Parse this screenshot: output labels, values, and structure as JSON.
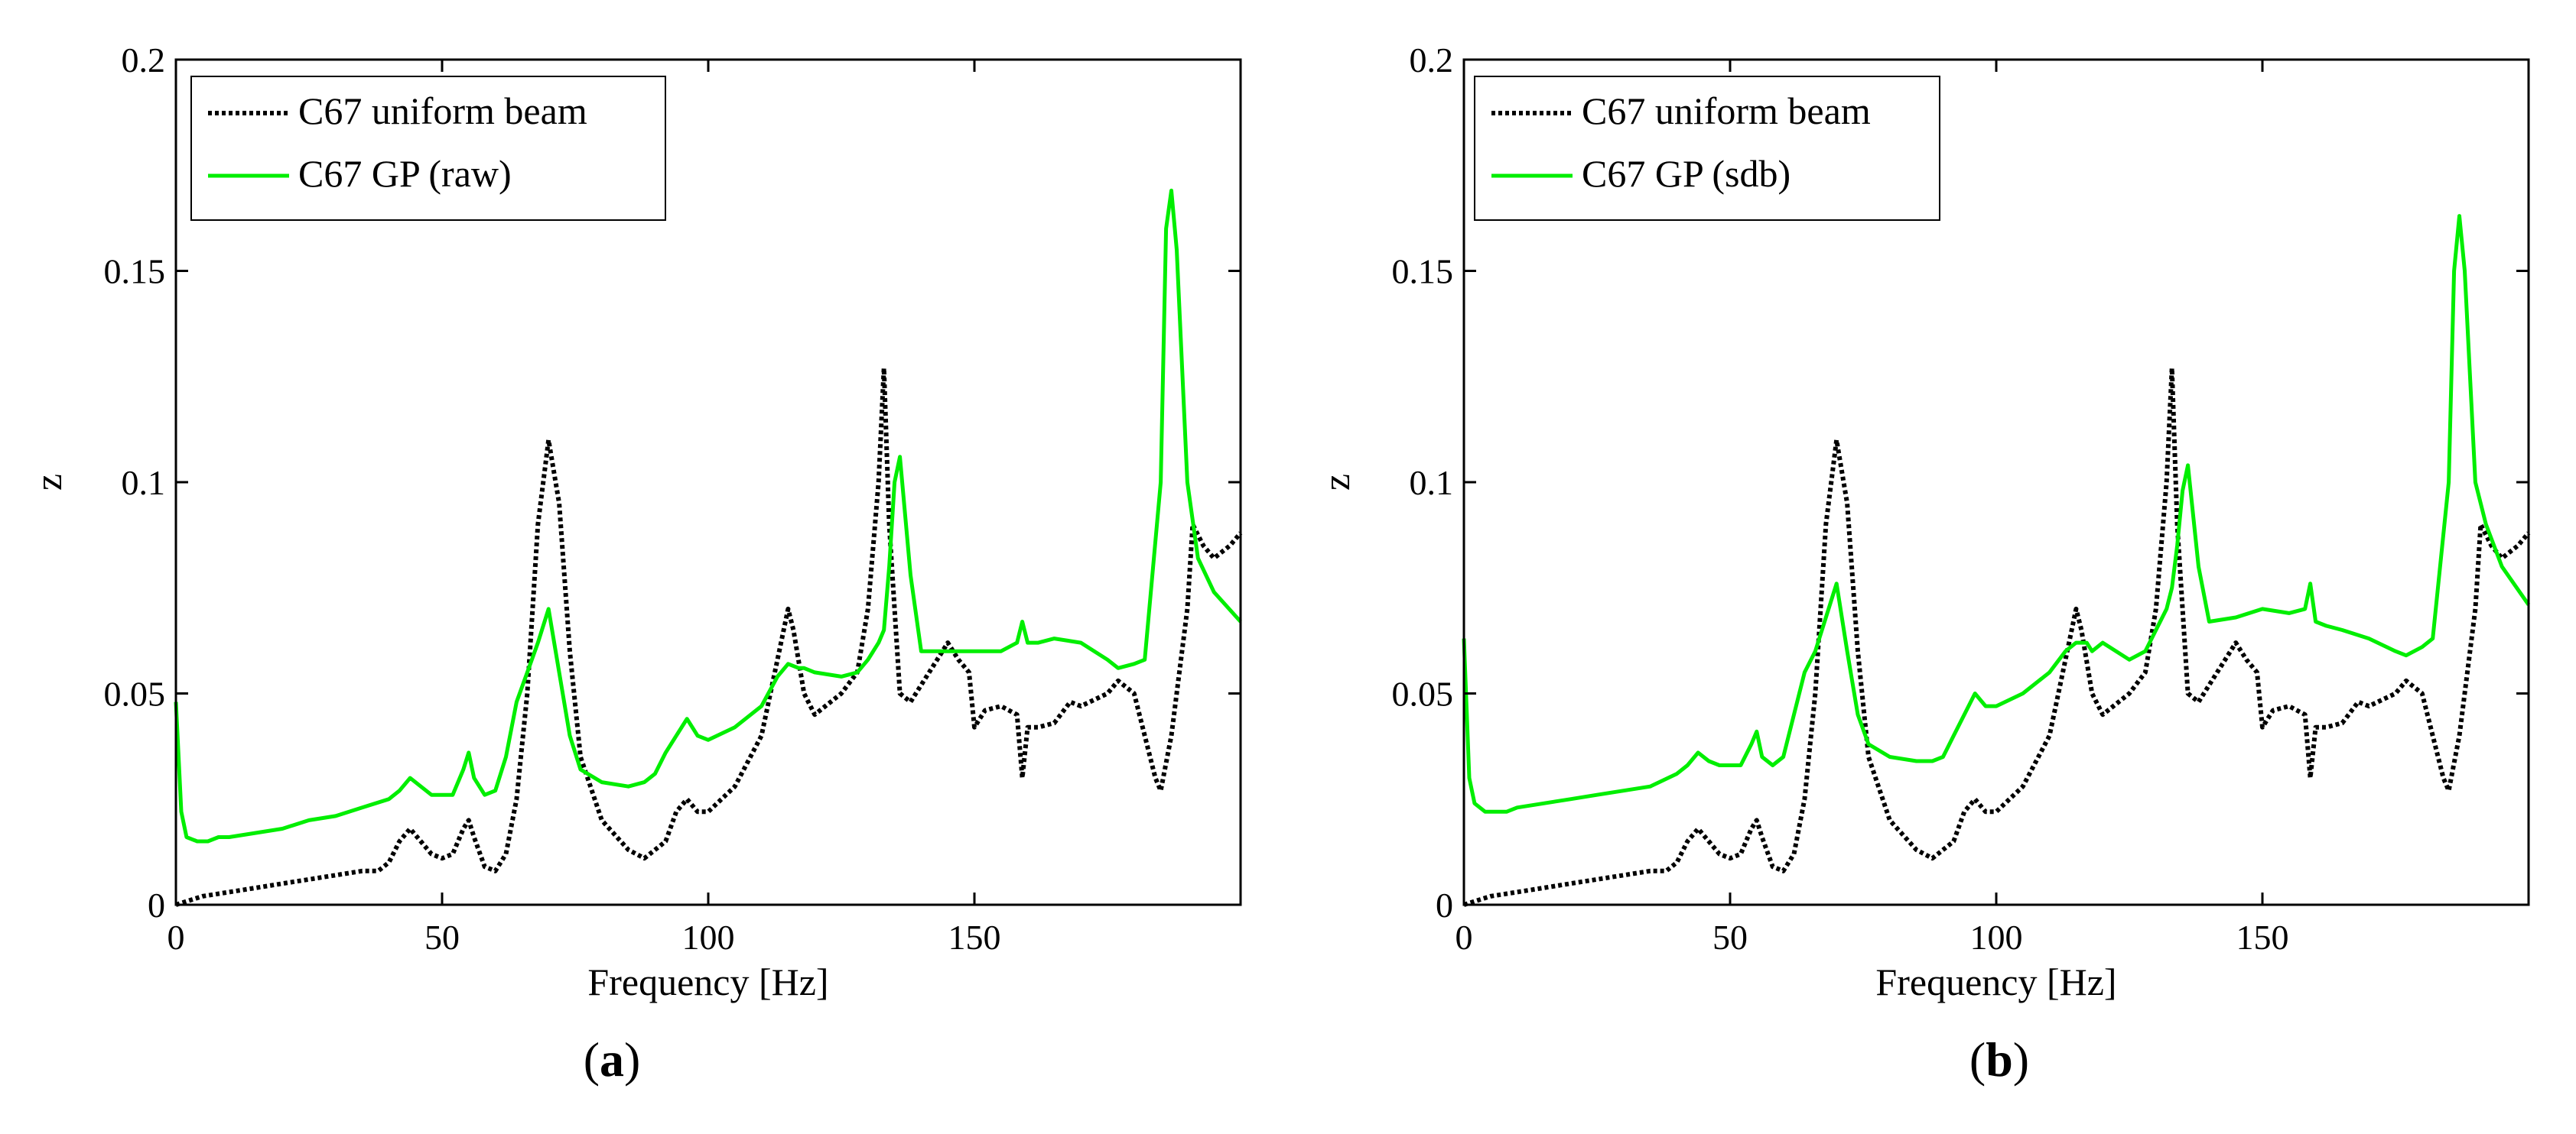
{
  "colors": {
    "uniform": "#000000",
    "gp": "#00ee00",
    "frame": "#000000",
    "background": "#ffffff"
  },
  "chart_data": [
    {
      "type": "line",
      "caption_letter": "a",
      "caption_open": "(",
      "caption_close": ")",
      "xlabel": "Frequency [Hz]",
      "ylabel": "z",
      "xlim": [
        0,
        200
      ],
      "ylim": [
        0,
        0.2
      ],
      "xticks": [
        0,
        50,
        100,
        150
      ],
      "xtick_labels": [
        "0",
        "50",
        "100",
        "150"
      ],
      "yticks": [
        0,
        0.05,
        0.1,
        0.15,
        0.2
      ],
      "ytick_labels": [
        "0",
        "0.05",
        "0.1",
        "0.15",
        "0.2"
      ],
      "legend_position": "top-left",
      "series": [
        {
          "name": "C67 uniform beam",
          "style": "dotted",
          "color": "#000000",
          "x": [
            0,
            5,
            10,
            15,
            20,
            25,
            30,
            35,
            38,
            40,
            42,
            44,
            46,
            48,
            50,
            52,
            54,
            55,
            56,
            58,
            60,
            62,
            64,
            66,
            68,
            70,
            72,
            74,
            76,
            80,
            85,
            88,
            92,
            94,
            96,
            98,
            100,
            105,
            110,
            113,
            115,
            116,
            118,
            120,
            125,
            128,
            130,
            132,
            133,
            134,
            136,
            138,
            140,
            143,
            145,
            147,
            149,
            150,
            152,
            155,
            158,
            159,
            160,
            162,
            165,
            168,
            170,
            175,
            177,
            180,
            182,
            184,
            185,
            187,
            190,
            191,
            193,
            195,
            198,
            200
          ],
          "values": [
            0,
            0.002,
            0.003,
            0.004,
            0.005,
            0.006,
            0.007,
            0.008,
            0.008,
            0.01,
            0.015,
            0.018,
            0.015,
            0.012,
            0.011,
            0.012,
            0.018,
            0.02,
            0.016,
            0.009,
            0.008,
            0.012,
            0.025,
            0.05,
            0.09,
            0.11,
            0.095,
            0.06,
            0.035,
            0.02,
            0.013,
            0.011,
            0.015,
            0.022,
            0.025,
            0.022,
            0.022,
            0.028,
            0.04,
            0.058,
            0.07,
            0.065,
            0.05,
            0.045,
            0.05,
            0.055,
            0.07,
            0.1,
            0.127,
            0.09,
            0.05,
            0.048,
            0.052,
            0.058,
            0.062,
            0.058,
            0.055,
            0.042,
            0.046,
            0.047,
            0.045,
            0.03,
            0.042,
            0.042,
            0.043,
            0.048,
            0.047,
            0.05,
            0.053,
            0.05,
            0.04,
            0.03,
            0.027,
            0.04,
            0.07,
            0.09,
            0.085,
            0.082,
            0.085,
            0.088
          ]
        },
        {
          "name": "C67 GP (raw)",
          "style": "solid",
          "color": "#00ee00",
          "x": [
            0,
            1,
            2,
            4,
            6,
            8,
            10,
            15,
            20,
            25,
            30,
            35,
            40,
            42,
            44,
            46,
            48,
            50,
            52,
            54,
            55,
            56,
            58,
            60,
            62,
            64,
            66,
            68,
            70,
            72,
            74,
            76,
            80,
            85,
            88,
            90,
            92,
            94,
            96,
            98,
            100,
            105,
            110,
            113,
            115,
            117,
            118,
            120,
            125,
            128,
            130,
            132,
            133,
            134,
            135,
            136,
            138,
            140,
            145,
            150,
            155,
            158,
            159,
            160,
            162,
            165,
            170,
            175,
            177,
            180,
            182,
            185,
            186,
            187,
            188,
            190,
            192,
            195,
            200
          ],
          "values": [
            0.048,
            0.022,
            0.016,
            0.015,
            0.015,
            0.016,
            0.016,
            0.017,
            0.018,
            0.02,
            0.021,
            0.023,
            0.025,
            0.027,
            0.03,
            0.028,
            0.026,
            0.026,
            0.026,
            0.032,
            0.036,
            0.03,
            0.026,
            0.027,
            0.035,
            0.048,
            0.055,
            0.062,
            0.07,
            0.055,
            0.04,
            0.032,
            0.029,
            0.028,
            0.029,
            0.031,
            0.036,
            0.04,
            0.044,
            0.04,
            0.039,
            0.042,
            0.047,
            0.054,
            0.057,
            0.056,
            0.056,
            0.055,
            0.054,
            0.055,
            0.058,
            0.062,
            0.065,
            0.08,
            0.1,
            0.106,
            0.078,
            0.06,
            0.06,
            0.06,
            0.06,
            0.062,
            0.067,
            0.062,
            0.062,
            0.063,
            0.062,
            0.058,
            0.056,
            0.057,
            0.058,
            0.1,
            0.16,
            0.169,
            0.155,
            0.1,
            0.082,
            0.074,
            0.067
          ]
        }
      ]
    },
    {
      "type": "line",
      "caption_letter": "b",
      "caption_open": "(",
      "caption_close": ")",
      "xlabel": "Frequency [Hz]",
      "ylabel": "z",
      "xlim": [
        0,
        200
      ],
      "ylim": [
        0,
        0.2
      ],
      "xticks": [
        0,
        50,
        100,
        150
      ],
      "xtick_labels": [
        "0",
        "50",
        "100",
        "150"
      ],
      "yticks": [
        0,
        0.05,
        0.1,
        0.15,
        0.2
      ],
      "ytick_labels": [
        "0",
        "0.05",
        "0.1",
        "0.15",
        "0.2"
      ],
      "legend_position": "top-left",
      "series": [
        {
          "name": "C67 uniform beam",
          "style": "dotted",
          "color": "#000000",
          "x": [
            0,
            5,
            10,
            15,
            20,
            25,
            30,
            35,
            38,
            40,
            42,
            44,
            46,
            48,
            50,
            52,
            54,
            55,
            56,
            58,
            60,
            62,
            64,
            66,
            68,
            70,
            72,
            74,
            76,
            80,
            85,
            88,
            92,
            94,
            96,
            98,
            100,
            105,
            110,
            113,
            115,
            116,
            118,
            120,
            125,
            128,
            130,
            132,
            133,
            134,
            136,
            138,
            140,
            143,
            145,
            147,
            149,
            150,
            152,
            155,
            158,
            159,
            160,
            162,
            165,
            168,
            170,
            175,
            177,
            180,
            182,
            184,
            185,
            187,
            190,
            191,
            193,
            195,
            198,
            200
          ],
          "values": [
            0,
            0.002,
            0.003,
            0.004,
            0.005,
            0.006,
            0.007,
            0.008,
            0.008,
            0.01,
            0.015,
            0.018,
            0.015,
            0.012,
            0.011,
            0.012,
            0.018,
            0.02,
            0.016,
            0.009,
            0.008,
            0.012,
            0.025,
            0.05,
            0.09,
            0.11,
            0.095,
            0.06,
            0.035,
            0.02,
            0.013,
            0.011,
            0.015,
            0.022,
            0.025,
            0.022,
            0.022,
            0.028,
            0.04,
            0.058,
            0.07,
            0.065,
            0.05,
            0.045,
            0.05,
            0.055,
            0.07,
            0.1,
            0.127,
            0.09,
            0.05,
            0.048,
            0.052,
            0.058,
            0.062,
            0.058,
            0.055,
            0.042,
            0.046,
            0.047,
            0.045,
            0.03,
            0.042,
            0.042,
            0.043,
            0.048,
            0.047,
            0.05,
            0.053,
            0.05,
            0.04,
            0.03,
            0.027,
            0.04,
            0.07,
            0.09,
            0.085,
            0.082,
            0.085,
            0.088
          ]
        },
        {
          "name": "C67 GP (sdb)",
          "style": "solid",
          "color": "#00ee00",
          "x": [
            0,
            1,
            2,
            4,
            6,
            8,
            10,
            15,
            20,
            25,
            30,
            35,
            40,
            42,
            44,
            46,
            48,
            50,
            52,
            54,
            55,
            56,
            58,
            60,
            62,
            64,
            66,
            68,
            70,
            72,
            74,
            76,
            80,
            85,
            88,
            90,
            92,
            94,
            96,
            98,
            100,
            105,
            110,
            113,
            115,
            117,
            118,
            120,
            125,
            128,
            130,
            132,
            133,
            134,
            135,
            136,
            138,
            140,
            145,
            150,
            155,
            158,
            159,
            160,
            162,
            165,
            170,
            175,
            177,
            180,
            182,
            185,
            186,
            187,
            188,
            190,
            192,
            195,
            200
          ],
          "values": [
            0.063,
            0.03,
            0.024,
            0.022,
            0.022,
            0.022,
            0.023,
            0.024,
            0.025,
            0.026,
            0.027,
            0.028,
            0.031,
            0.033,
            0.036,
            0.034,
            0.033,
            0.033,
            0.033,
            0.038,
            0.041,
            0.035,
            0.033,
            0.035,
            0.045,
            0.055,
            0.06,
            0.068,
            0.076,
            0.06,
            0.045,
            0.038,
            0.035,
            0.034,
            0.034,
            0.035,
            0.04,
            0.045,
            0.05,
            0.047,
            0.047,
            0.05,
            0.055,
            0.06,
            0.062,
            0.062,
            0.06,
            0.062,
            0.058,
            0.06,
            0.065,
            0.07,
            0.075,
            0.085,
            0.098,
            0.104,
            0.08,
            0.067,
            0.068,
            0.07,
            0.069,
            0.07,
            0.076,
            0.067,
            0.066,
            0.065,
            0.063,
            0.06,
            0.059,
            0.061,
            0.063,
            0.1,
            0.15,
            0.163,
            0.15,
            0.1,
            0.09,
            0.08,
            0.071
          ]
        }
      ]
    }
  ]
}
